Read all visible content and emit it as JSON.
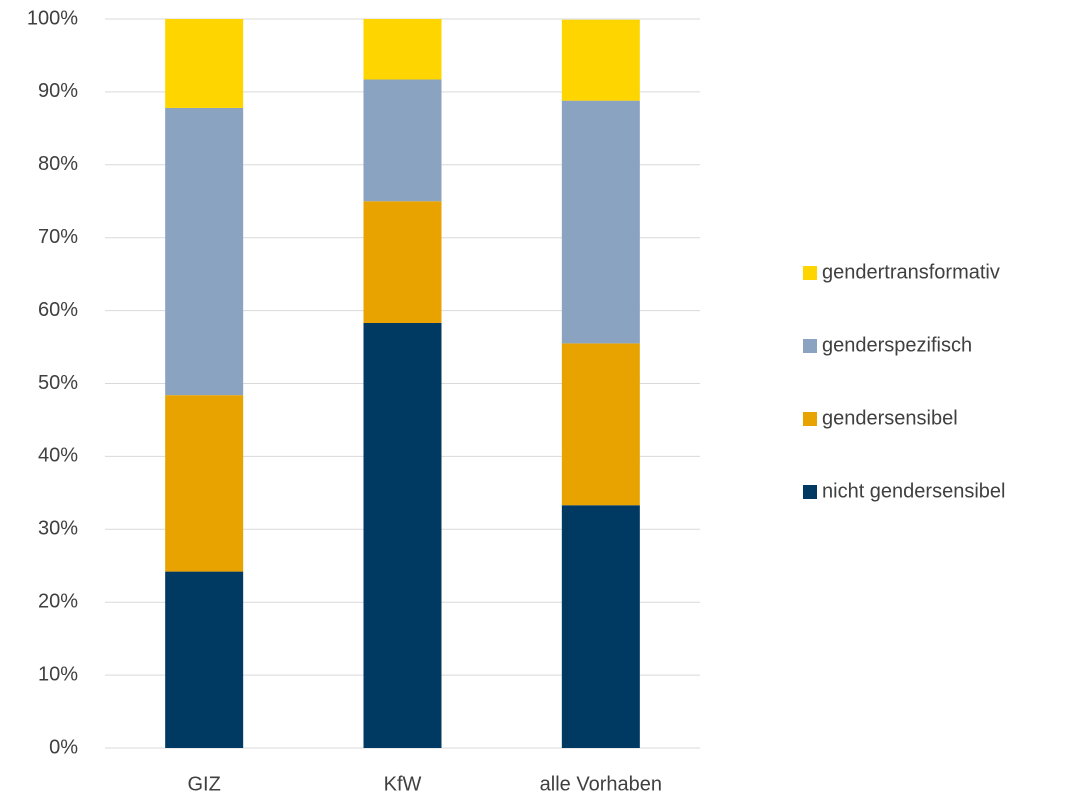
{
  "chart_data": {
    "type": "bar",
    "stacked": true,
    "categories": [
      "GIZ",
      "KfW",
      "alle Vorhaben"
    ],
    "series": [
      {
        "name": "nicht gendersensibel",
        "color": "#003a63",
        "values": [
          24.2,
          58.3,
          33.3
        ]
      },
      {
        "name": "gendersensibel",
        "color": "#e8a300",
        "values": [
          24.2,
          16.7,
          22.2
        ]
      },
      {
        "name": "genderspezifisch",
        "color": "#8aa3c0",
        "values": [
          39.4,
          16.7,
          33.3
        ]
      },
      {
        "name": "gendertransformativ",
        "color": "#ffd500",
        "values": [
          12.2,
          8.3,
          11.1
        ]
      }
    ],
    "ylim": [
      0,
      100
    ],
    "yticks": [
      {
        "value": 0,
        "label": "0%"
      },
      {
        "value": 10,
        "label": "10%"
      },
      {
        "value": 20,
        "label": "20%"
      },
      {
        "value": 30,
        "label": "30%"
      },
      {
        "value": 40,
        "label": "40%"
      },
      {
        "value": 50,
        "label": "50%"
      },
      {
        "value": 60,
        "label": "60%"
      },
      {
        "value": 70,
        "label": "70%"
      },
      {
        "value": 80,
        "label": "80%"
      },
      {
        "value": 90,
        "label": "90%"
      },
      {
        "value": 100,
        "label": "100%"
      }
    ],
    "grid": true,
    "legend": "right"
  }
}
